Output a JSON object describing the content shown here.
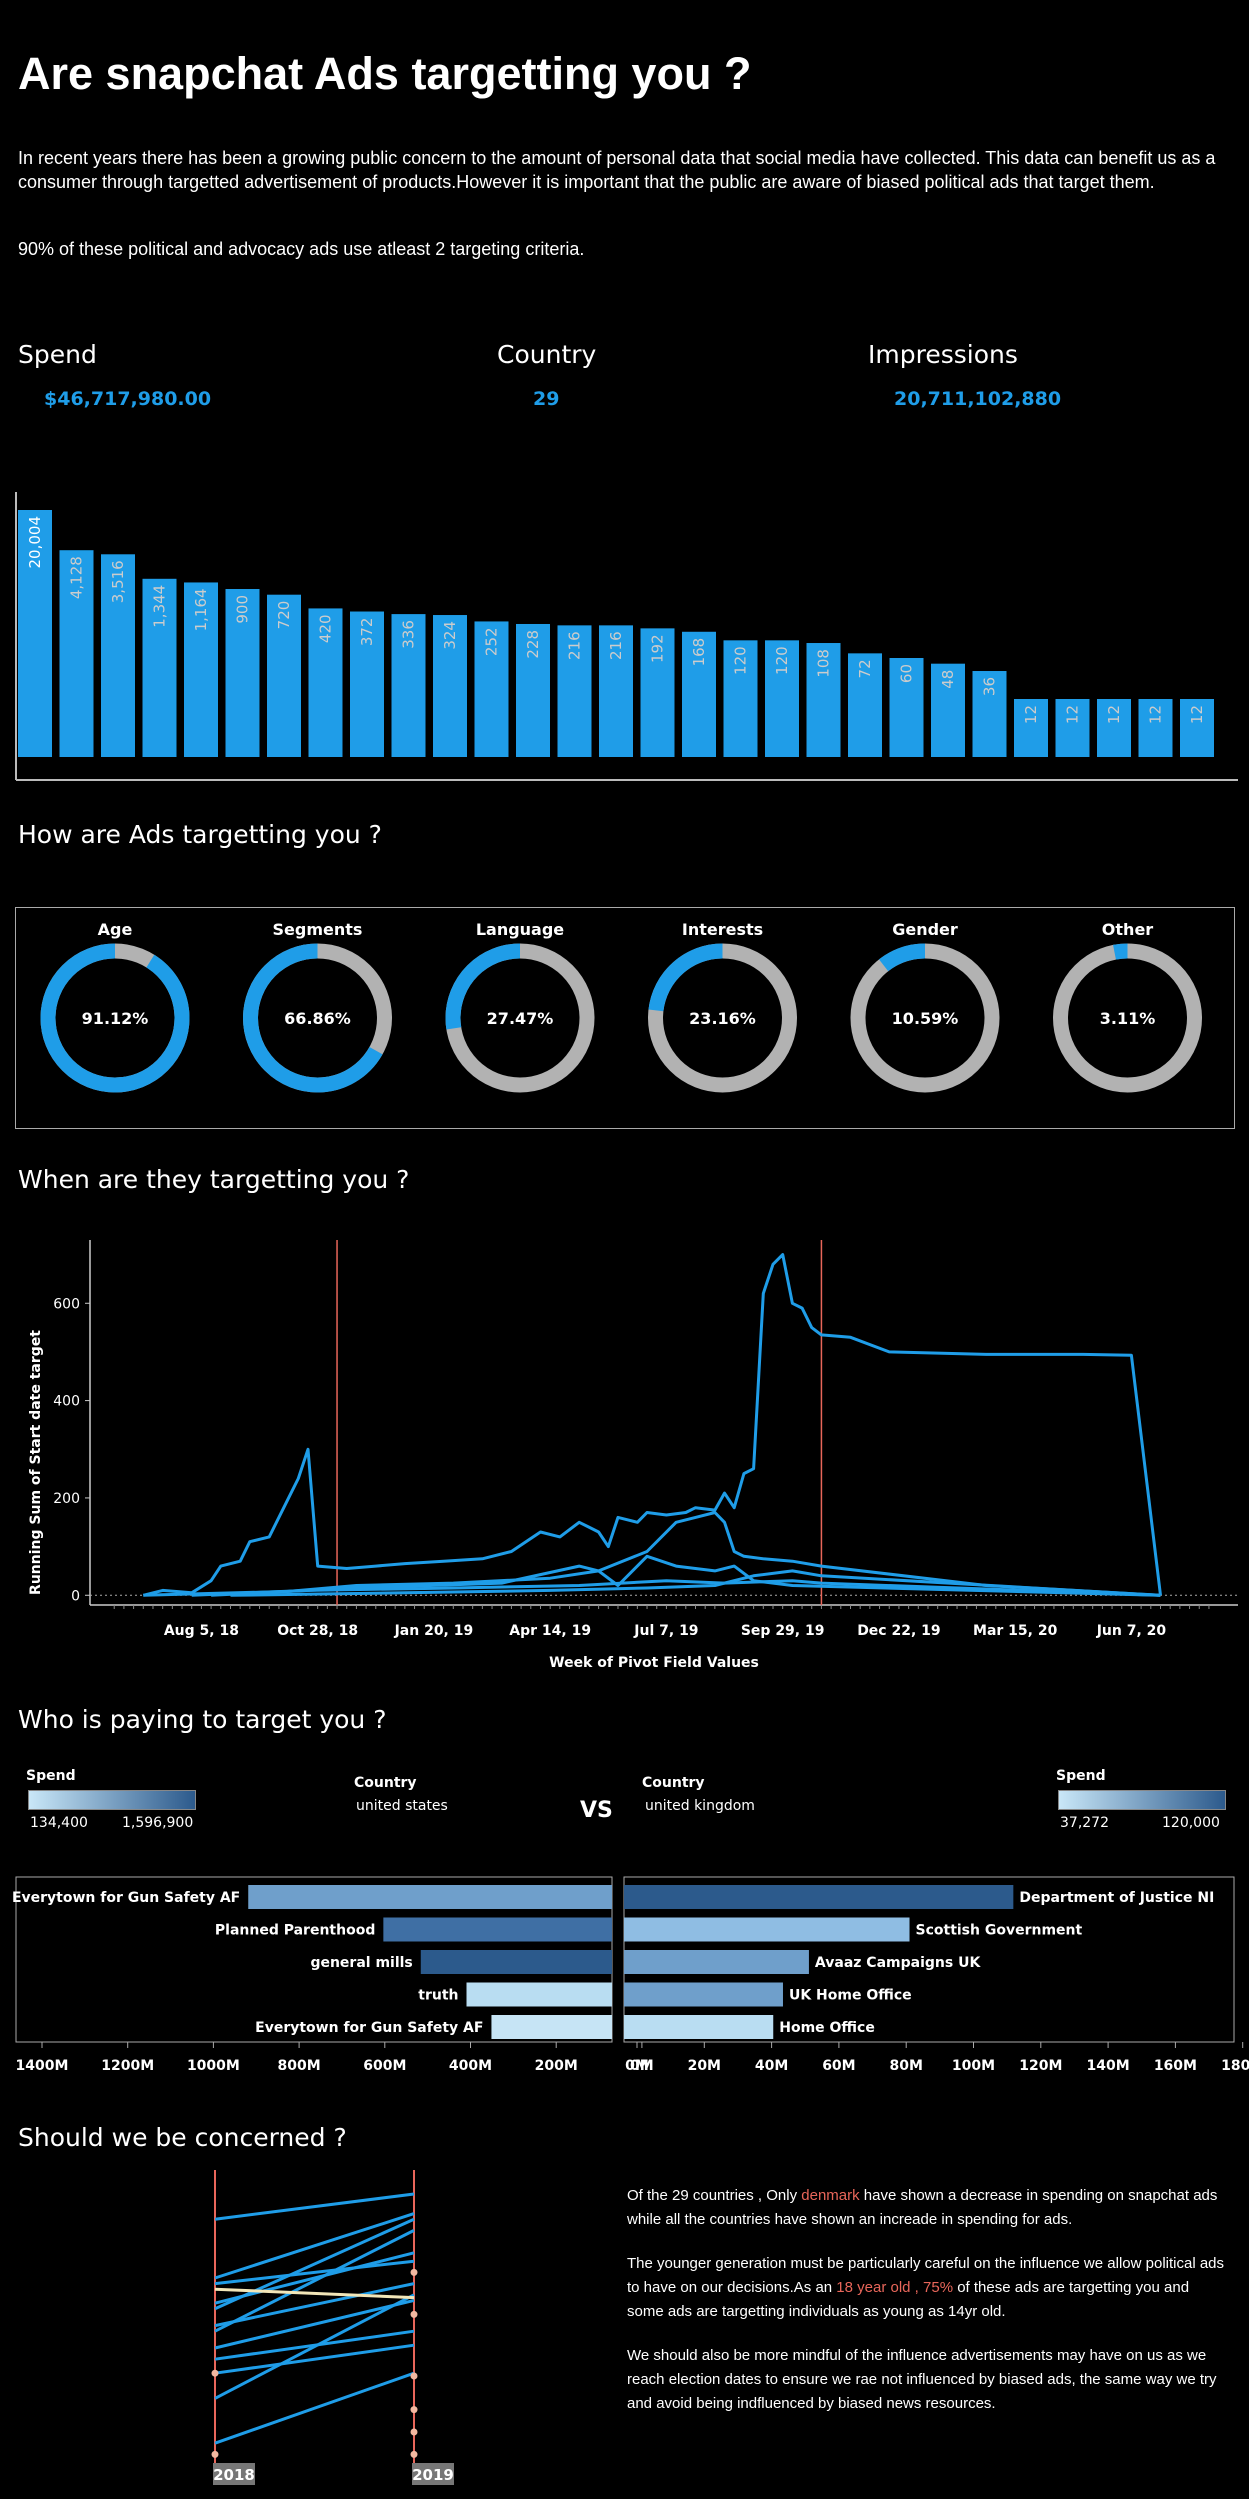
{
  "header": {
    "title": "Are snapchat Ads targetting you ?",
    "intro": "In recent years there has been a growing public concern to the amount of personal data that social media have collected. This data can benefit us as a consumer through targetted advertisement of products.However it is important that the public are aware of biased political ads that target them.",
    "stat": "90% of these political and advocacy ads use atleast 2 targeting criteria."
  },
  "kpis": {
    "spend_label": "Spend",
    "spend_value": "$46,717,980.00",
    "country_label": "Country",
    "country_value": "29",
    "impressions_label": "Impressions",
    "impressions_value": "20,711,102,880"
  },
  "sections": {
    "how": "How are Ads targetting you ?",
    "when": "When are they targetting you ?",
    "who": "Who is paying to target you ?",
    "concern": "Should we be concerned ?"
  },
  "colors": {
    "accent": "#1f9de8",
    "gray": "#b2b2b2",
    "red": "#e8665a",
    "dark_blue": "#2c5a8c",
    "light_blue": "#b9ddf2"
  },
  "who": {
    "left_legend": {
      "title": "Spend",
      "min": "134,400",
      "max": "1,596,900"
    },
    "right_legend": {
      "title": "Spend",
      "min": "37,272",
      "max": "120,000"
    },
    "left_country": {
      "label": "Country",
      "value": "united states"
    },
    "right_country": {
      "label": "Country",
      "value": "united kingdom"
    },
    "vs": "VS"
  },
  "concern_text": {
    "p1_a": "Of the 29 countries , Only ",
    "p1_hl": "denmark",
    "p1_b": " have shown a decrease in spending on snapchat ads while all the countries have shown an increade in spending for ads.",
    "p2_a": "The younger generation must be particularly careful on the influence we allow political ads to have on our decisions.As an ",
    "p2_hl": "18 year old , 75%",
    "p2_b": " of these ads are targetting you and some ads are targetting individuals as young as 14yr old.",
    "p3": "We should also be more mindful of the influence advertisements may have on us as we reach election dates to ensure we rae not influenced by biased ads, the same way we try and avoid being indfluenced by biased news resources."
  },
  "chart_data": [
    {
      "type": "bar",
      "name": "country-bars",
      "values": [
        20004,
        4128,
        3516,
        1344,
        1164,
        900,
        720,
        420,
        372,
        336,
        324,
        252,
        228,
        216,
        216,
        192,
        168,
        120,
        120,
        108,
        72,
        60,
        48,
        36,
        12,
        12,
        12,
        12,
        12
      ],
      "labels": [
        "20,004",
        "4,128",
        "3,516",
        "1,344",
        "1,164",
        "900",
        "720",
        "420",
        "372",
        "336",
        "324",
        "252",
        "228",
        "216",
        "216",
        "192",
        "168",
        "120",
        "120",
        "108",
        "72",
        "60",
        "48",
        "36",
        "12",
        "12",
        "12",
        "12",
        "12"
      ]
    },
    {
      "type": "pie",
      "name": "targeting-donuts",
      "items": [
        {
          "title": "Age",
          "value": 91.12,
          "label": "91.12%"
        },
        {
          "title": "Segments",
          "value": 66.86,
          "label": "66.86%"
        },
        {
          "title": "Language",
          "value": 27.47,
          "label": "27.47%"
        },
        {
          "title": "Interests",
          "value": 23.16,
          "label": "23.16%"
        },
        {
          "title": "Gender",
          "value": 10.59,
          "label": "10.59%"
        },
        {
          "title": "Other",
          "value": 3.11,
          "label": "3.11%"
        }
      ]
    },
    {
      "type": "line",
      "name": "running-sum",
      "xlabel": "Week of Pivot Field Values",
      "ylabel": "Running Sum of Start date target",
      "ylim": [
        -20,
        730
      ],
      "xlim": [
        -2.5,
        116
      ],
      "x_ticks": [
        {
          "x": 9,
          "label": "Aug 5, 18"
        },
        {
          "x": 21,
          "label": "Oct 28, 18"
        },
        {
          "x": 33,
          "label": "Jan 20, 19"
        },
        {
          "x": 45,
          "label": "Apr 14, 19"
        },
        {
          "x": 57,
          "label": "Jul 7, 19"
        },
        {
          "x": 69,
          "label": "Sep 29, 19"
        },
        {
          "x": 81,
          "label": "Dec 22, 19"
        },
        {
          "x": 93,
          "label": "Mar 15, 20"
        },
        {
          "x": 105,
          "label": "Jun 7, 20"
        }
      ],
      "y_ticks": [
        0,
        200,
        400,
        600
      ],
      "ref_lines_x": [
        23,
        73
      ],
      "series": [
        {
          "points": [
            [
              3,
              0
            ],
            [
              5,
              10
            ],
            [
              8,
              5
            ],
            [
              10,
              30
            ],
            [
              11,
              60
            ],
            [
              13,
              70
            ],
            [
              14,
              110
            ],
            [
              16,
              120
            ],
            [
              18,
              200
            ],
            [
              19,
              240
            ],
            [
              20,
              300
            ],
            [
              21,
              60
            ],
            [
              24,
              55
            ],
            [
              27,
              60
            ],
            [
              30,
              65
            ],
            [
              34,
              70
            ],
            [
              38,
              75
            ],
            [
              41,
              90
            ],
            [
              44,
              130
            ],
            [
              46,
              120
            ],
            [
              48,
              150
            ],
            [
              49,
              140
            ],
            [
              50,
              130
            ],
            [
              51,
              100
            ],
            [
              52,
              160
            ],
            [
              54,
              150
            ],
            [
              55,
              170
            ],
            [
              57,
              165
            ],
            [
              59,
              170
            ],
            [
              60,
              180
            ],
            [
              62,
              175
            ],
            [
              63,
              210
            ],
            [
              64,
              180
            ],
            [
              65,
              250
            ],
            [
              66,
              260
            ],
            [
              67,
              620
            ],
            [
              68,
              680
            ],
            [
              69,
              700
            ],
            [
              70,
              600
            ],
            [
              71,
              590
            ],
            [
              72,
              550
            ],
            [
              73,
              535
            ],
            [
              76,
              530
            ],
            [
              80,
              500
            ],
            [
              90,
              495
            ],
            [
              100,
              495
            ],
            [
              105,
              493
            ],
            [
              108,
              0
            ]
          ]
        },
        {
          "points": [
            [
              3,
              0
            ],
            [
              18,
              8
            ],
            [
              25,
              20
            ],
            [
              35,
              25
            ],
            [
              45,
              35
            ],
            [
              50,
              50
            ],
            [
              55,
              90
            ],
            [
              58,
              150
            ],
            [
              60,
              160
            ],
            [
              62,
              170
            ],
            [
              63,
              150
            ],
            [
              64,
              90
            ],
            [
              65,
              80
            ],
            [
              67,
              75
            ],
            [
              70,
              70
            ],
            [
              73,
              60
            ],
            [
              90,
              20
            ],
            [
              108,
              0
            ]
          ]
        },
        {
          "points": [
            [
              10,
              0
            ],
            [
              25,
              15
            ],
            [
              40,
              25
            ],
            [
              48,
              60
            ],
            [
              50,
              50
            ],
            [
              52,
              20
            ],
            [
              55,
              80
            ],
            [
              58,
              60
            ],
            [
              62,
              50
            ],
            [
              64,
              60
            ],
            [
              66,
              30
            ],
            [
              70,
              20
            ],
            [
              108,
              0
            ]
          ]
        },
        {
          "points": [
            [
              12,
              0
            ],
            [
              30,
              5
            ],
            [
              45,
              10
            ],
            [
              55,
              15
            ],
            [
              62,
              20
            ],
            [
              66,
              40
            ],
            [
              70,
              50
            ],
            [
              73,
              40
            ],
            [
              108,
              0
            ]
          ]
        },
        {
          "points": [
            [
              8,
              0
            ],
            [
              20,
              10
            ],
            [
              35,
              15
            ],
            [
              48,
              20
            ],
            [
              57,
              30
            ],
            [
              63,
              25
            ],
            [
              70,
              30
            ],
            [
              73,
              25
            ],
            [
              108,
              0
            ]
          ]
        }
      ]
    },
    {
      "type": "bar",
      "name": "us-payers",
      "orientation": "horizontal",
      "categories": [
        "Everytown for Gun Safety AF",
        "Planned Parenthood",
        "general mills",
        "truth",
        "Everytown for Gun Safety AF"
      ],
      "values": [
        875,
        550,
        460,
        350,
        290
      ],
      "shades": [
        "#6f9fcb",
        "#3f6fa4",
        "#2c5a8c",
        "#b9ddf2",
        "#c6e4f5"
      ],
      "axis_labels": [
        "1400M",
        "1200M",
        "1000M",
        "800M",
        "600M",
        "400M",
        "200M",
        "0M"
      ],
      "xlim": [
        0,
        1400
      ]
    },
    {
      "type": "bar",
      "name": "uk-payers",
      "orientation": "horizontal",
      "categories": [
        "Department of Justice NI",
        "Scottish Government",
        "Avaaz Campaigns UK",
        "UK Home Office",
        "Home Office"
      ],
      "values": [
        120,
        88,
        57,
        49,
        46
      ],
      "shades": [
        "#2c5a8c",
        "#8fbde3",
        "#6f9fcb",
        "#6f9fcb",
        "#b9ddf2"
      ],
      "axis_labels": [
        "0M",
        "20M",
        "40M",
        "60M",
        "80M",
        "100M",
        "120M",
        "140M",
        "160M",
        "180M"
      ],
      "xlim": [
        0,
        180
      ]
    },
    {
      "type": "line",
      "name": "slope-2018-2019",
      "x": [
        "2018",
        "2019"
      ],
      "ylim": [
        0,
        1
      ],
      "series": [
        {
          "values": [
            0.86,
            0.95
          ]
        },
        {
          "values": [
            0.65,
            0.88
          ]
        },
        {
          "values": [
            0.63,
            0.71
          ]
        },
        {
          "values": [
            0.56,
            0.74
          ]
        },
        {
          "values": [
            0.54,
            0.86
          ]
        },
        {
          "values": [
            0.48,
            0.63
          ]
        },
        {
          "values": [
            0.46,
            0.82
          ]
        },
        {
          "values": [
            0.4,
            0.57
          ]
        },
        {
          "values": [
            0.36,
            0.46
          ]
        },
        {
          "values": [
            0.31,
            0.41
          ]
        },
        {
          "values": [
            0.22,
            0.59
          ]
        },
        {
          "values": [
            0.06,
            0.31
          ]
        },
        {
          "values": [
            0.61,
            0.58
          ],
          "highlight": true
        }
      ]
    }
  ]
}
